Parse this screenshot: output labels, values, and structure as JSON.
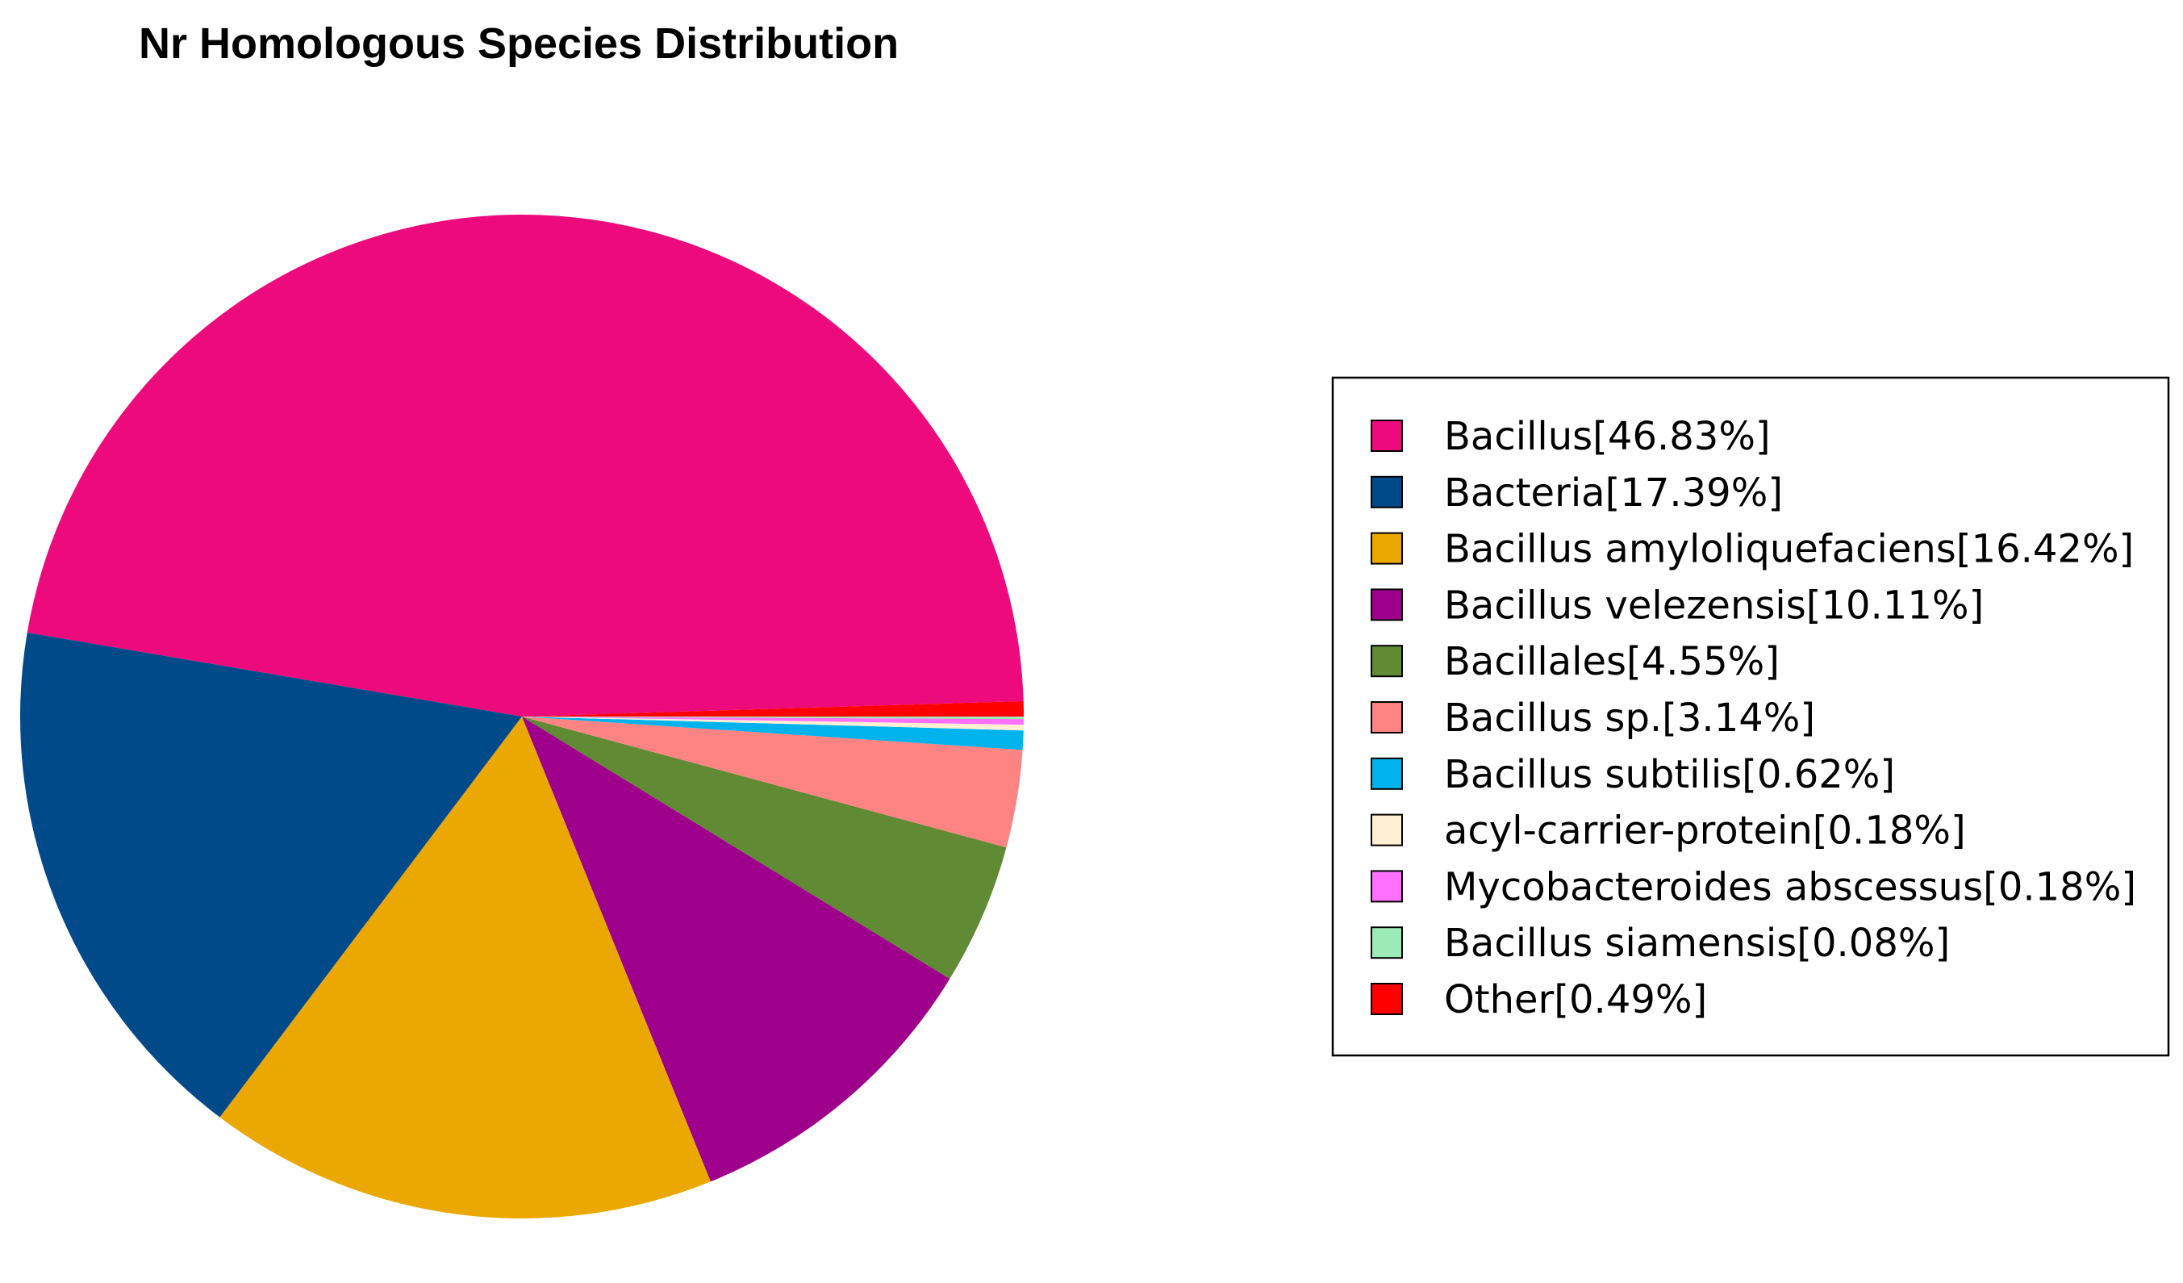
{
  "chart_data": {
    "type": "pie",
    "title": "Nr Homologous Species Distribution",
    "legend_position": "right",
    "slices": [
      {
        "label": "Bacillus[46.83%]",
        "value": 46.83,
        "color": "#ED0A7D"
      },
      {
        "label": "Bacteria[17.39%]",
        "value": 17.39,
        "color": "#004A8A"
      },
      {
        "label": "Bacillus amyloliquefaciens[16.42%]",
        "value": 16.42,
        "color": "#EBA702"
      },
      {
        "label": "Bacillus velezensis[10.11%]",
        "value": 10.11,
        "color": "#9E008C"
      },
      {
        "label": "Bacillales[4.55%]",
        "value": 4.55,
        "color": "#608A33"
      },
      {
        "label": "Bacillus sp.[3.14%]",
        "value": 3.14,
        "color": "#FD8482"
      },
      {
        "label": "Bacillus subtilis[0.62%]",
        "value": 0.62,
        "color": "#00B3EC"
      },
      {
        "label": "acyl-carrier-protein[0.18%]",
        "value": 0.18,
        "color": "#FFF0D4"
      },
      {
        "label": "Mycobacteroides abscessus[0.18%]",
        "value": 0.18,
        "color": "#FF70FF"
      },
      {
        "label": "Bacillus siamensis[0.08%]",
        "value": 0.08,
        "color": "#9CEBB6"
      },
      {
        "label": "Other[0.49%]",
        "value": 0.49,
        "color": "#FF0000"
      }
    ]
  }
}
